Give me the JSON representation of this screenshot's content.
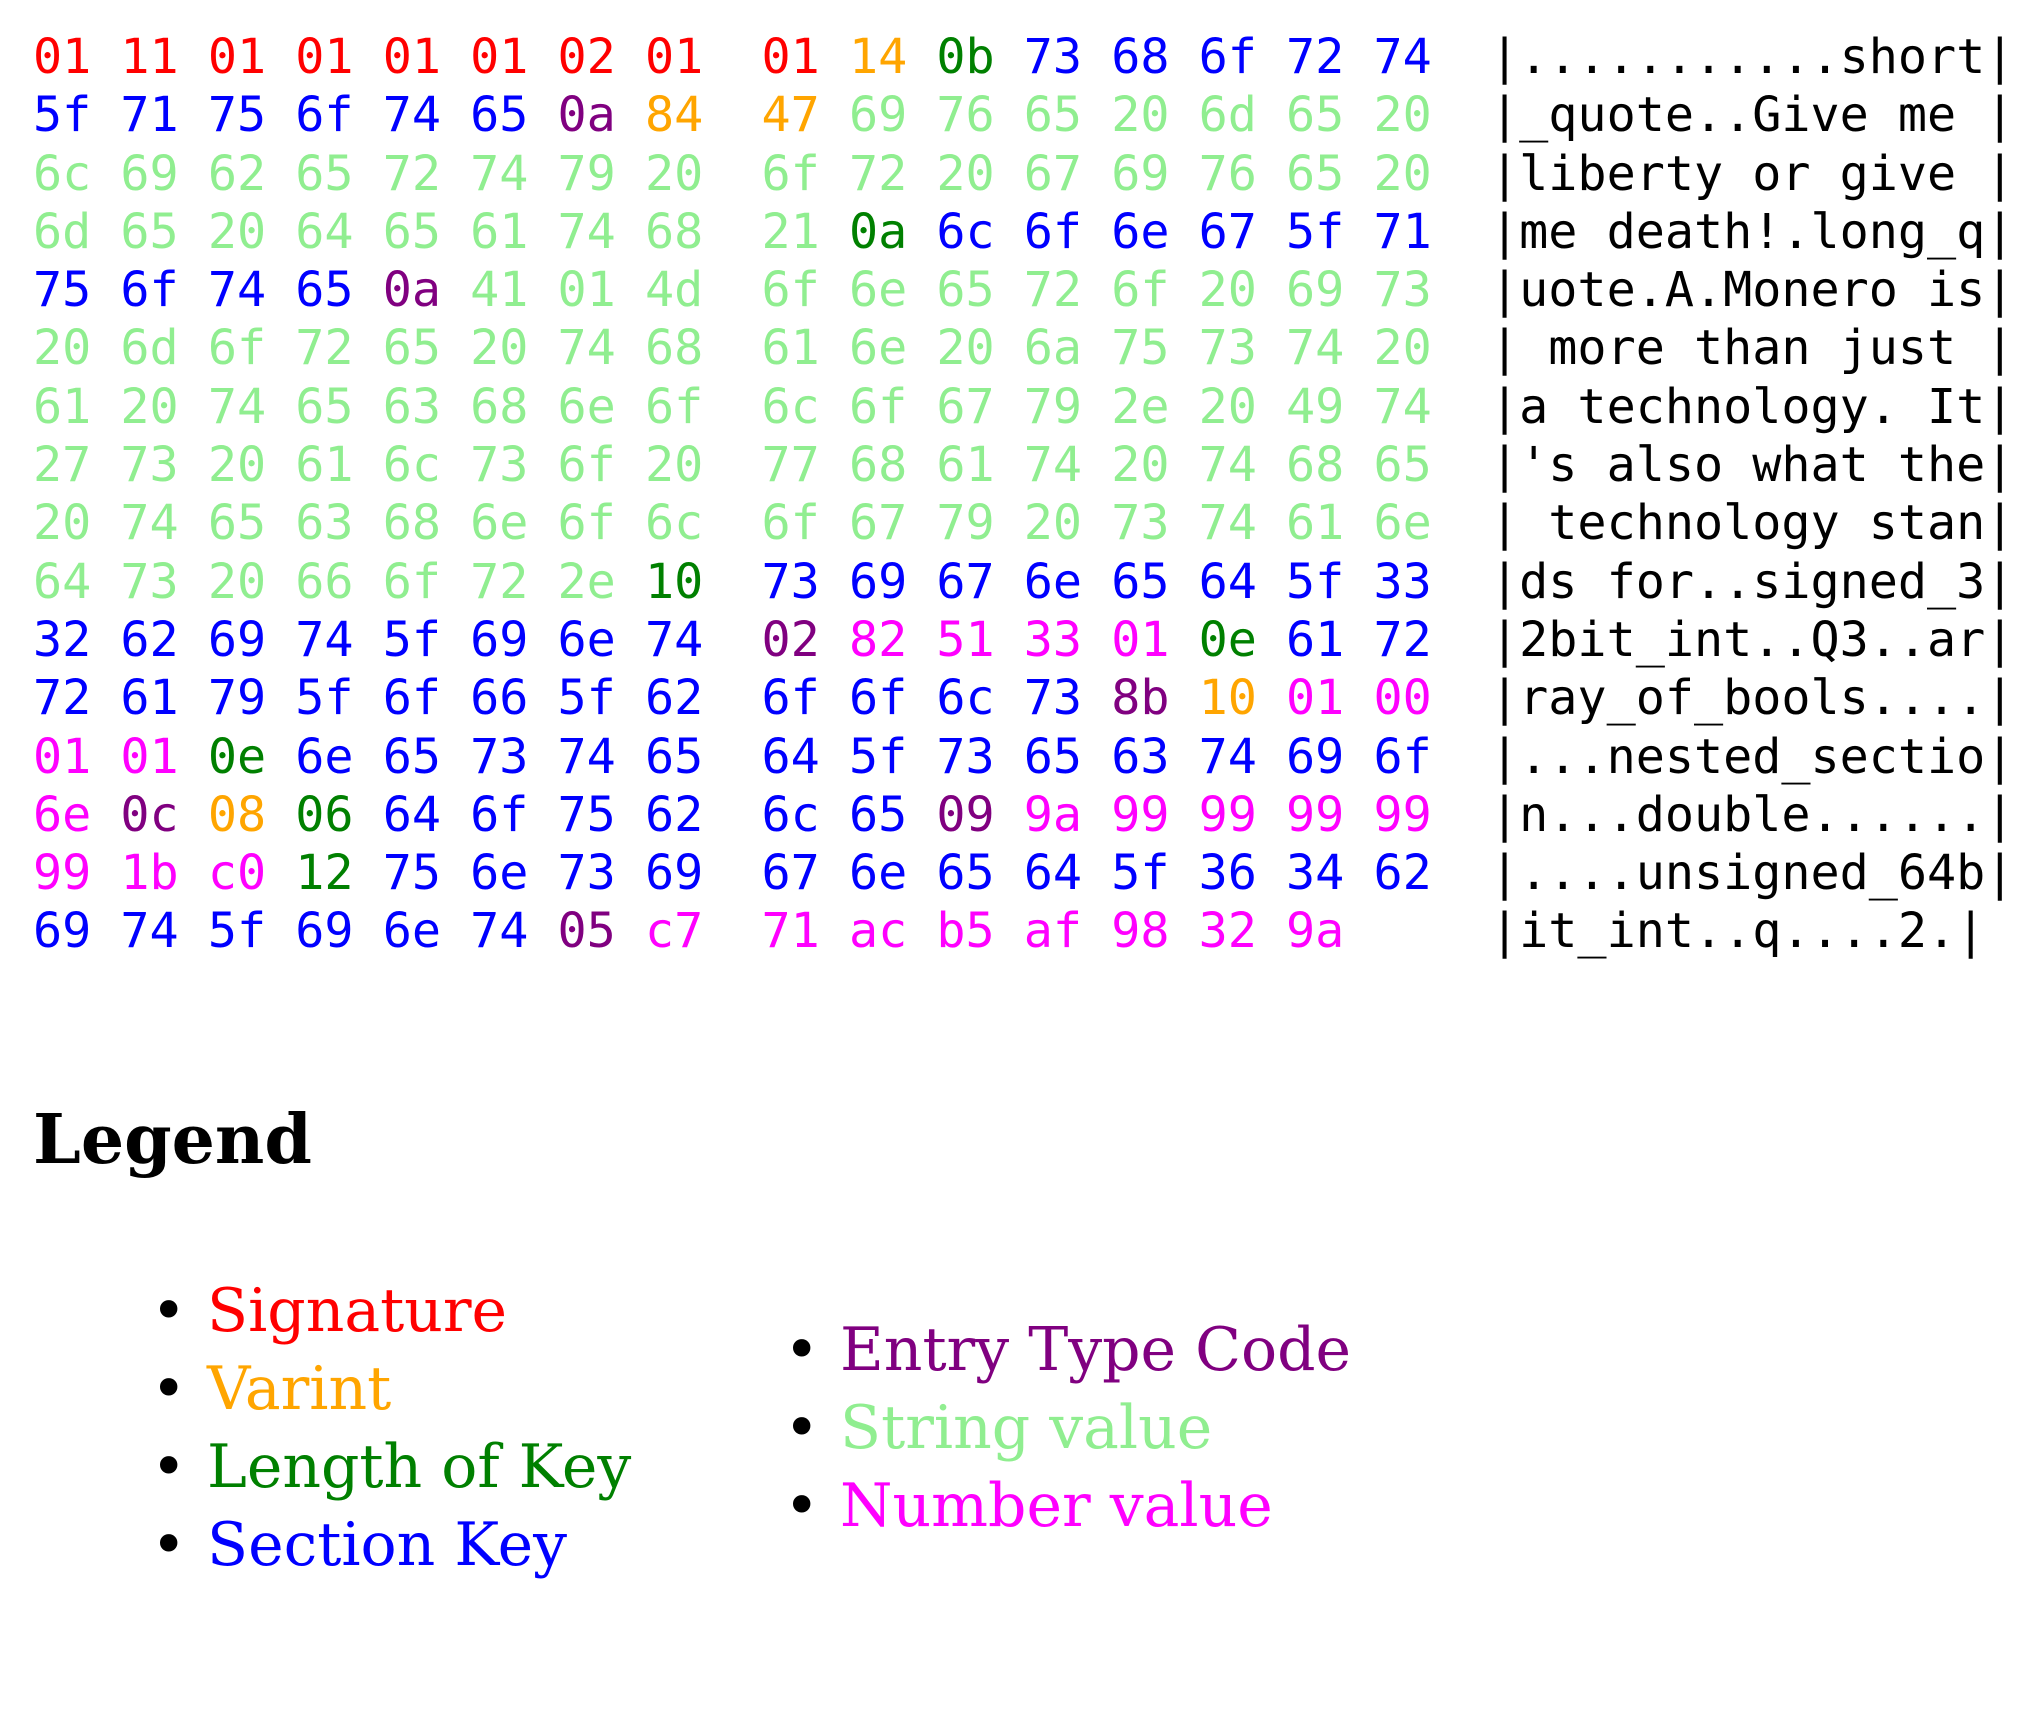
{
  "colors": {
    "S": "#ff0000",
    "V": "#ffa500",
    "L": "#008000",
    "K": "#0000ff",
    "E": "#800080",
    "T": "#90ee90",
    "N": "#ff00ff"
  },
  "hexdump": {
    "rows": [
      {
        "bytes": [
          [
            "01",
            "S"
          ],
          [
            "11",
            "S"
          ],
          [
            "01",
            "S"
          ],
          [
            "01",
            "S"
          ],
          [
            "01",
            "S"
          ],
          [
            "01",
            "S"
          ],
          [
            "02",
            "S"
          ],
          [
            "01",
            "S"
          ],
          [
            "01",
            "S"
          ],
          [
            "14",
            "V"
          ],
          [
            "0b",
            "L"
          ],
          [
            "73",
            "K"
          ],
          [
            "68",
            "K"
          ],
          [
            "6f",
            "K"
          ],
          [
            "72",
            "K"
          ],
          [
            "74",
            "K"
          ]
        ],
        "ascii": "|...........short|"
      },
      {
        "bytes": [
          [
            "5f",
            "K"
          ],
          [
            "71",
            "K"
          ],
          [
            "75",
            "K"
          ],
          [
            "6f",
            "K"
          ],
          [
            "74",
            "K"
          ],
          [
            "65",
            "K"
          ],
          [
            "0a",
            "E"
          ],
          [
            "84",
            "V"
          ],
          [
            "47",
            "V"
          ],
          [
            "69",
            "T"
          ],
          [
            "76",
            "T"
          ],
          [
            "65",
            "T"
          ],
          [
            "20",
            "T"
          ],
          [
            "6d",
            "T"
          ],
          [
            "65",
            "T"
          ],
          [
            "20",
            "T"
          ]
        ],
        "ascii": "|_quote..Give me |"
      },
      {
        "bytes": [
          [
            "6c",
            "T"
          ],
          [
            "69",
            "T"
          ],
          [
            "62",
            "T"
          ],
          [
            "65",
            "T"
          ],
          [
            "72",
            "T"
          ],
          [
            "74",
            "T"
          ],
          [
            "79",
            "T"
          ],
          [
            "20",
            "T"
          ],
          [
            "6f",
            "T"
          ],
          [
            "72",
            "T"
          ],
          [
            "20",
            "T"
          ],
          [
            "67",
            "T"
          ],
          [
            "69",
            "T"
          ],
          [
            "76",
            "T"
          ],
          [
            "65",
            "T"
          ],
          [
            "20",
            "T"
          ]
        ],
        "ascii": "|liberty or give |"
      },
      {
        "bytes": [
          [
            "6d",
            "T"
          ],
          [
            "65",
            "T"
          ],
          [
            "20",
            "T"
          ],
          [
            "64",
            "T"
          ],
          [
            "65",
            "T"
          ],
          [
            "61",
            "T"
          ],
          [
            "74",
            "T"
          ],
          [
            "68",
            "T"
          ],
          [
            "21",
            "T"
          ],
          [
            "0a",
            "L"
          ],
          [
            "6c",
            "K"
          ],
          [
            "6f",
            "K"
          ],
          [
            "6e",
            "K"
          ],
          [
            "67",
            "K"
          ],
          [
            "5f",
            "K"
          ],
          [
            "71",
            "K"
          ]
        ],
        "ascii": "|me death!.long_q|"
      },
      {
        "bytes": [
          [
            "75",
            "K"
          ],
          [
            "6f",
            "K"
          ],
          [
            "74",
            "K"
          ],
          [
            "65",
            "K"
          ],
          [
            "0a",
            "E"
          ],
          [
            "41",
            "T"
          ],
          [
            "01",
            "T"
          ],
          [
            "4d",
            "T"
          ],
          [
            "6f",
            "T"
          ],
          [
            "6e",
            "T"
          ],
          [
            "65",
            "T"
          ],
          [
            "72",
            "T"
          ],
          [
            "6f",
            "T"
          ],
          [
            "20",
            "T"
          ],
          [
            "69",
            "T"
          ],
          [
            "73",
            "T"
          ]
        ],
        "ascii": "|uote.A.Monero is|"
      },
      {
        "bytes": [
          [
            "20",
            "T"
          ],
          [
            "6d",
            "T"
          ],
          [
            "6f",
            "T"
          ],
          [
            "72",
            "T"
          ],
          [
            "65",
            "T"
          ],
          [
            "20",
            "T"
          ],
          [
            "74",
            "T"
          ],
          [
            "68",
            "T"
          ],
          [
            "61",
            "T"
          ],
          [
            "6e",
            "T"
          ],
          [
            "20",
            "T"
          ],
          [
            "6a",
            "T"
          ],
          [
            "75",
            "T"
          ],
          [
            "73",
            "T"
          ],
          [
            "74",
            "T"
          ],
          [
            "20",
            "T"
          ]
        ],
        "ascii": "| more than just |"
      },
      {
        "bytes": [
          [
            "61",
            "T"
          ],
          [
            "20",
            "T"
          ],
          [
            "74",
            "T"
          ],
          [
            "65",
            "T"
          ],
          [
            "63",
            "T"
          ],
          [
            "68",
            "T"
          ],
          [
            "6e",
            "T"
          ],
          [
            "6f",
            "T"
          ],
          [
            "6c",
            "T"
          ],
          [
            "6f",
            "T"
          ],
          [
            "67",
            "T"
          ],
          [
            "79",
            "T"
          ],
          [
            "2e",
            "T"
          ],
          [
            "20",
            "T"
          ],
          [
            "49",
            "T"
          ],
          [
            "74",
            "T"
          ]
        ],
        "ascii": "|a technology. It|"
      },
      {
        "bytes": [
          [
            "27",
            "T"
          ],
          [
            "73",
            "T"
          ],
          [
            "20",
            "T"
          ],
          [
            "61",
            "T"
          ],
          [
            "6c",
            "T"
          ],
          [
            "73",
            "T"
          ],
          [
            "6f",
            "T"
          ],
          [
            "20",
            "T"
          ],
          [
            "77",
            "T"
          ],
          [
            "68",
            "T"
          ],
          [
            "61",
            "T"
          ],
          [
            "74",
            "T"
          ],
          [
            "20",
            "T"
          ],
          [
            "74",
            "T"
          ],
          [
            "68",
            "T"
          ],
          [
            "65",
            "T"
          ]
        ],
        "ascii": "|'s also what the|"
      },
      {
        "bytes": [
          [
            "20",
            "T"
          ],
          [
            "74",
            "T"
          ],
          [
            "65",
            "T"
          ],
          [
            "63",
            "T"
          ],
          [
            "68",
            "T"
          ],
          [
            "6e",
            "T"
          ],
          [
            "6f",
            "T"
          ],
          [
            "6c",
            "T"
          ],
          [
            "6f",
            "T"
          ],
          [
            "67",
            "T"
          ],
          [
            "79",
            "T"
          ],
          [
            "20",
            "T"
          ],
          [
            "73",
            "T"
          ],
          [
            "74",
            "T"
          ],
          [
            "61",
            "T"
          ],
          [
            "6e",
            "T"
          ]
        ],
        "ascii": "| technology stan|"
      },
      {
        "bytes": [
          [
            "64",
            "T"
          ],
          [
            "73",
            "T"
          ],
          [
            "20",
            "T"
          ],
          [
            "66",
            "T"
          ],
          [
            "6f",
            "T"
          ],
          [
            "72",
            "T"
          ],
          [
            "2e",
            "T"
          ],
          [
            "10",
            "L"
          ],
          [
            "73",
            "K"
          ],
          [
            "69",
            "K"
          ],
          [
            "67",
            "K"
          ],
          [
            "6e",
            "K"
          ],
          [
            "65",
            "K"
          ],
          [
            "64",
            "K"
          ],
          [
            "5f",
            "K"
          ],
          [
            "33",
            "K"
          ]
        ],
        "ascii": "|ds for..signed_3|"
      },
      {
        "bytes": [
          [
            "32",
            "K"
          ],
          [
            "62",
            "K"
          ],
          [
            "69",
            "K"
          ],
          [
            "74",
            "K"
          ],
          [
            "5f",
            "K"
          ],
          [
            "69",
            "K"
          ],
          [
            "6e",
            "K"
          ],
          [
            "74",
            "K"
          ],
          [
            "02",
            "E"
          ],
          [
            "82",
            "N"
          ],
          [
            "51",
            "N"
          ],
          [
            "33",
            "N"
          ],
          [
            "01",
            "N"
          ],
          [
            "0e",
            "L"
          ],
          [
            "61",
            "K"
          ],
          [
            "72",
            "K"
          ]
        ],
        "ascii": "|2bit_int..Q3..ar|"
      },
      {
        "bytes": [
          [
            "72",
            "K"
          ],
          [
            "61",
            "K"
          ],
          [
            "79",
            "K"
          ],
          [
            "5f",
            "K"
          ],
          [
            "6f",
            "K"
          ],
          [
            "66",
            "K"
          ],
          [
            "5f",
            "K"
          ],
          [
            "62",
            "K"
          ],
          [
            "6f",
            "K"
          ],
          [
            "6f",
            "K"
          ],
          [
            "6c",
            "K"
          ],
          [
            "73",
            "K"
          ],
          [
            "8b",
            "E"
          ],
          [
            "10",
            "V"
          ],
          [
            "01",
            "N"
          ],
          [
            "00",
            "N"
          ]
        ],
        "ascii": "|ray_of_bools....|"
      },
      {
        "bytes": [
          [
            "01",
            "N"
          ],
          [
            "01",
            "N"
          ],
          [
            "0e",
            "L"
          ],
          [
            "6e",
            "K"
          ],
          [
            "65",
            "K"
          ],
          [
            "73",
            "K"
          ],
          [
            "74",
            "K"
          ],
          [
            "65",
            "K"
          ],
          [
            "64",
            "K"
          ],
          [
            "5f",
            "K"
          ],
          [
            "73",
            "K"
          ],
          [
            "65",
            "K"
          ],
          [
            "63",
            "K"
          ],
          [
            "74",
            "K"
          ],
          [
            "69",
            "K"
          ],
          [
            "6f",
            "K"
          ]
        ],
        "ascii": "|...nested_sectio|"
      },
      {
        "bytes": [
          [
            "6e",
            "N"
          ],
          [
            "0c",
            "E"
          ],
          [
            "08",
            "V"
          ],
          [
            "06",
            "L"
          ],
          [
            "64",
            "K"
          ],
          [
            "6f",
            "K"
          ],
          [
            "75",
            "K"
          ],
          [
            "62",
            "K"
          ],
          [
            "6c",
            "K"
          ],
          [
            "65",
            "K"
          ],
          [
            "09",
            "E"
          ],
          [
            "9a",
            "N"
          ],
          [
            "99",
            "N"
          ],
          [
            "99",
            "N"
          ],
          [
            "99",
            "N"
          ],
          [
            "99",
            "N"
          ]
        ],
        "ascii": "|n...double......|"
      },
      {
        "bytes": [
          [
            "99",
            "N"
          ],
          [
            "1b",
            "N"
          ],
          [
            "c0",
            "N"
          ],
          [
            "12",
            "L"
          ],
          [
            "75",
            "K"
          ],
          [
            "6e",
            "K"
          ],
          [
            "73",
            "K"
          ],
          [
            "69",
            "K"
          ],
          [
            "67",
            "K"
          ],
          [
            "6e",
            "K"
          ],
          [
            "65",
            "K"
          ],
          [
            "64",
            "K"
          ],
          [
            "5f",
            "K"
          ],
          [
            "36",
            "K"
          ],
          [
            "34",
            "K"
          ],
          [
            "62",
            "K"
          ]
        ],
        "ascii": "|....unsigned_64b|"
      },
      {
        "bytes": [
          [
            "69",
            "K"
          ],
          [
            "74",
            "K"
          ],
          [
            "5f",
            "K"
          ],
          [
            "69",
            "K"
          ],
          [
            "6e",
            "K"
          ],
          [
            "74",
            "K"
          ],
          [
            "05",
            "E"
          ],
          [
            "c7",
            "N"
          ],
          [
            "71",
            "N"
          ],
          [
            "ac",
            "N"
          ],
          [
            "b5",
            "N"
          ],
          [
            "af",
            "N"
          ],
          [
            "98",
            "N"
          ],
          [
            "32",
            "N"
          ],
          [
            "9a",
            "N"
          ]
        ],
        "ascii": "|it_int..q....2.|"
      }
    ]
  },
  "legend": {
    "title": "Legend",
    "left": [
      {
        "label": "Signature",
        "type": "S"
      },
      {
        "label": "Varint",
        "type": "V"
      },
      {
        "label": "Length of Key",
        "type": "L"
      },
      {
        "label": "Section Key",
        "type": "K"
      }
    ],
    "right": [
      {
        "label": "Entry Type Code",
        "type": "E"
      },
      {
        "label": "String value",
        "type": "T"
      },
      {
        "label": "Number value",
        "type": "N"
      }
    ]
  }
}
